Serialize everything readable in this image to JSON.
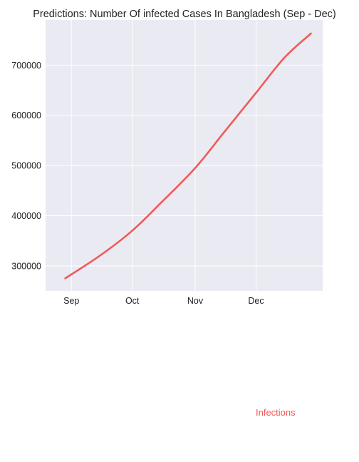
{
  "chart_data": {
    "type": "line",
    "title": "Predictions: Number Of infected Cases In Bangladesh (Sep - Dec)",
    "xlabel": "",
    "ylabel": "",
    "x_ticks": [
      "Sep",
      "Oct",
      "Nov",
      "Dec"
    ],
    "y_ticks": [
      300000,
      400000,
      500000,
      600000,
      700000
    ],
    "ylim": [
      250000,
      790000
    ],
    "grid": true,
    "legend_position": "bottom-right (below plot)",
    "series": [
      {
        "name": "Infections",
        "color": "#f05a5a",
        "x": [
          "Aug 29",
          "Sep 15",
          "Oct 1",
          "Oct 15",
          "Nov 1",
          "Nov 15",
          "Dec 1",
          "Dec 15",
          "Dec 28"
        ],
        "values": [
          275000,
          320000,
          370000,
          425000,
          495000,
          565000,
          645000,
          715000,
          763000
        ]
      }
    ]
  },
  "legend": {
    "label": "Infections"
  }
}
